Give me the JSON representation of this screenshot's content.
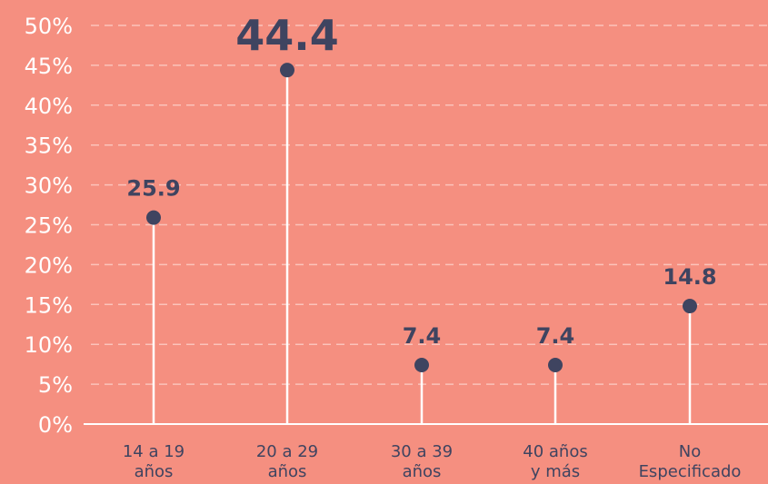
{
  "chart_data": {
    "type": "lollipop",
    "categories": [
      [
        "14 a 19",
        "años"
      ],
      [
        "20 a 29",
        "años"
      ],
      [
        "30 a 39",
        "años"
      ],
      [
        "40 años",
        "y más"
      ],
      [
        "No",
        "Especificado"
      ]
    ],
    "values": [
      25.9,
      44.4,
      7.4,
      7.4,
      14.8
    ],
    "data_labels": [
      "25.9",
      "44.4",
      "7.4",
      "7.4",
      "14.8"
    ],
    "highlight_index": 1,
    "y_ticks": [
      "0%",
      "5%",
      "10%",
      "15%",
      "20%",
      "25%",
      "30%",
      "35%",
      "40%",
      "45%",
      "50%"
    ],
    "ylim": [
      0,
      50
    ],
    "grid": true,
    "colors": {
      "background": "#F58F80",
      "marker": "#3F4460",
      "stem": "#FFFFFF",
      "grid": "#FBC3BA",
      "axis_text": "#FFFFFF",
      "label_text": "#3F4460"
    }
  }
}
